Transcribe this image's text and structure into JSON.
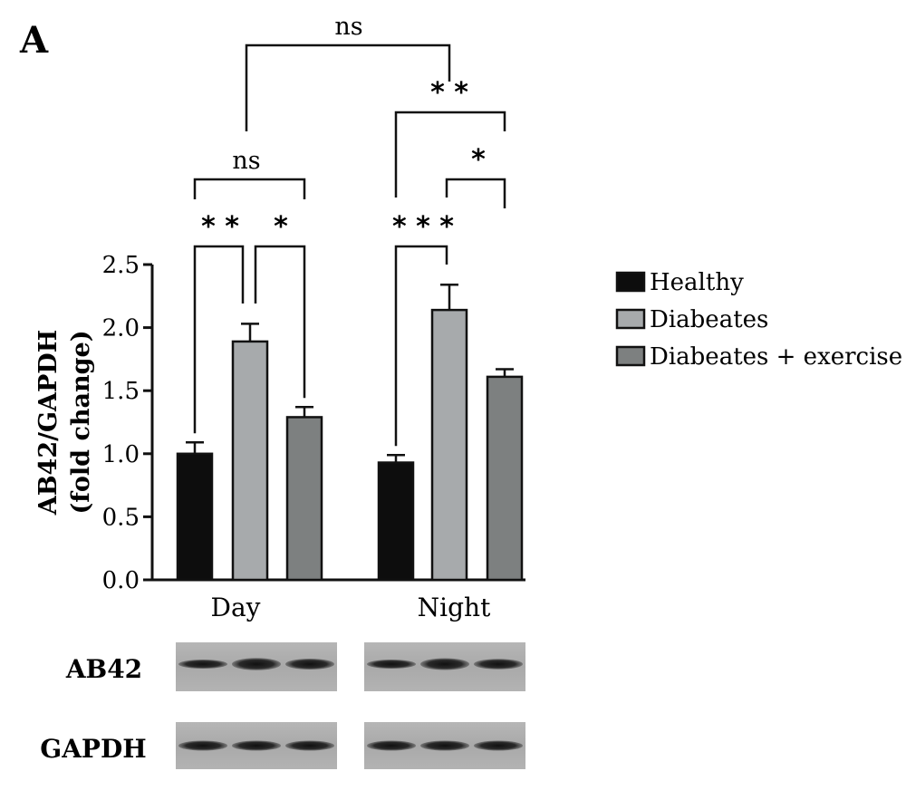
{
  "panel_letter": "A",
  "chart_data": {
    "type": "bar",
    "categories": [
      "Day",
      "Night"
    ],
    "series": [
      {
        "name": "Healthy",
        "color": "#0d0d0d",
        "values": [
          1.0,
          0.93
        ],
        "errors": [
          0.09,
          0.06
        ]
      },
      {
        "name": "Diabeates",
        "color": "#a7aaac",
        "values": [
          1.89,
          2.14
        ],
        "errors": [
          0.14,
          0.2
        ]
      },
      {
        "name": "Diabeates + exercise",
        "color": "#7d8080",
        "values": [
          1.29,
          1.61
        ],
        "errors": [
          0.08,
          0.06
        ]
      }
    ],
    "ylabel_line1": "AB42/GAPDH",
    "ylabel_line2": "(fold change)",
    "ylim": [
      0,
      2.5
    ],
    "yticks": [
      "0.0",
      "0.5",
      "1.0",
      "1.5",
      "2.0",
      "2.5"
    ],
    "legend_position": "right",
    "significance": [
      {
        "group": "Day",
        "from": "Healthy",
        "to": "Diabeates",
        "label": "* *"
      },
      {
        "group": "Day",
        "from": "Diabeates",
        "to": "Diabeates + exercise",
        "label": "*"
      },
      {
        "group": "Day",
        "from": "Healthy",
        "to": "Diabeates + exercise",
        "label": "ns"
      },
      {
        "group": "Night",
        "from": "Healthy",
        "to": "Diabeates",
        "label": "* * *"
      },
      {
        "group": "Night",
        "from": "Diabeates",
        "to": "Diabeates + exercise",
        "label": "*"
      },
      {
        "group": "Night",
        "from": "Healthy",
        "to": "Diabeates + exercise",
        "label": "* *"
      },
      {
        "group": "Day vs Night",
        "from": "Day",
        "to": "Night",
        "label": "ns"
      }
    ]
  },
  "blots": [
    {
      "label": "AB42"
    },
    {
      "label": "GAPDH"
    }
  ]
}
